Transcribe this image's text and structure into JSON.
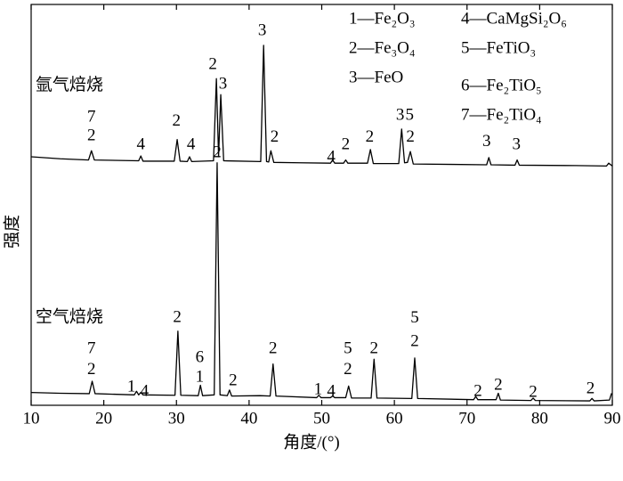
{
  "chart_data": {
    "type": "line",
    "x_label": "角度/(°)",
    "y_label": "强度",
    "xlim": [
      10,
      90
    ],
    "xticks": [
      10,
      20,
      30,
      40,
      50,
      60,
      70,
      80,
      90
    ],
    "ylim": [
      0,
      100
    ],
    "series": [
      {
        "color": "#000000",
        "x": [
          10,
          14,
          17.9,
          18.3,
          18.7,
          24.8,
          25.1,
          25.4,
          29.7,
          30.1,
          30.5,
          31.5,
          31.8,
          32.1,
          35.1,
          35.5,
          35.8,
          36.1,
          36.5,
          41.6,
          42.0,
          42.4,
          42.7,
          43.0,
          43.4,
          47,
          51.2,
          51.5,
          51.8,
          53.0,
          53.3,
          53.6,
          56.3,
          56.7,
          57.1,
          60.6,
          61.0,
          61.4,
          61.8,
          62.2,
          62.6,
          68,
          72.7,
          73.0,
          73.3,
          76.6,
          76.9,
          77.2,
          85,
          89.2,
          89.5,
          90
        ],
        "values": [
          62.0,
          61.5,
          61.2,
          63.5,
          61.2,
          61.0,
          62.2,
          60.9,
          60.9,
          66.3,
          60.9,
          60.8,
          62.0,
          60.8,
          61.0,
          81.5,
          62.0,
          77.5,
          61.0,
          60.8,
          89.8,
          60.8,
          60.7,
          63.5,
          60.6,
          60.5,
          60.4,
          61.2,
          60.4,
          60.4,
          61.2,
          60.4,
          60.4,
          63.8,
          60.3,
          60.3,
          68.9,
          60.5,
          60.6,
          63.3,
          60.2,
          60.1,
          60.0,
          61.8,
          60.0,
          59.9,
          61.2,
          59.9,
          59.8,
          59.7,
          60.4,
          59.7
        ]
      },
      {
        "color": "#000000",
        "x": [
          10,
          14,
          18.0,
          18.4,
          18.8,
          24.2,
          24.5,
          24.8,
          25.1,
          25.4,
          29.8,
          30.2,
          30.6,
          33.0,
          33.3,
          33.6,
          35.2,
          35.6,
          36.0,
          37.0,
          37.3,
          37.6,
          41.5,
          42.9,
          43.3,
          43.7,
          49.3,
          49.6,
          49.9,
          51.2,
          51.5,
          51.8,
          53.3,
          53.7,
          54.1,
          56.8,
          57.2,
          57.6,
          62.4,
          62.8,
          63.2,
          70.9,
          71.2,
          71.5,
          74.0,
          74.3,
          74.6,
          78.8,
          79.1,
          79.4,
          86.9,
          87.2,
          87.5,
          89.6,
          89.9
        ],
        "values": [
          3.2,
          3.0,
          2.9,
          6.0,
          2.9,
          2.6,
          3.5,
          2.6,
          3.2,
          2.6,
          2.5,
          18.5,
          2.5,
          2.4,
          5.0,
          2.4,
          2.6,
          60.5,
          2.6,
          2.4,
          3.8,
          2.3,
          2.4,
          2.3,
          10.3,
          2.3,
          1.9,
          2.5,
          1.9,
          1.9,
          2.3,
          1.9,
          1.9,
          4.8,
          1.8,
          1.8,
          11.5,
          1.8,
          1.7,
          11.8,
          1.7,
          1.4,
          2.2,
          1.4,
          1.4,
          3.0,
          1.3,
          1.2,
          1.8,
          1.2,
          1.1,
          1.7,
          1.1,
          1.3,
          3.0
        ]
      }
    ],
    "series_labels": [
      {
        "text": "氩气焙烧",
        "x": 10.6,
        "y": 79.6
      },
      {
        "text": "空气焙烧",
        "x": 10.6,
        "y": 21.8
      }
    ],
    "annotations": [
      {
        "text": "7",
        "x": 18.3,
        "y": 71.8
      },
      {
        "text": "2",
        "x": 18.3,
        "y": 67.1
      },
      {
        "text": "4",
        "x": 25.1,
        "y": 64.9
      },
      {
        "text": "2",
        "x": 30.0,
        "y": 70.7
      },
      {
        "text": "4",
        "x": 32.0,
        "y": 64.9
      },
      {
        "text": "2",
        "x": 35.0,
        "y": 84.9
      },
      {
        "text": "3",
        "x": 36.4,
        "y": 80.0
      },
      {
        "text": "3",
        "x": 41.8,
        "y": 93.3
      },
      {
        "text": "2",
        "x": 43.5,
        "y": 66.7
      },
      {
        "text": "4",
        "x": 51.3,
        "y": 61.8
      },
      {
        "text": "2",
        "x": 53.3,
        "y": 64.9
      },
      {
        "text": "2",
        "x": 56.6,
        "y": 66.7
      },
      {
        "text": "3",
        "x": 60.8,
        "y": 72.2
      },
      {
        "text": "5",
        "x": 62.1,
        "y": 72.2
      },
      {
        "text": "2",
        "x": 62.2,
        "y": 66.7
      },
      {
        "text": "3",
        "x": 72.7,
        "y": 65.6
      },
      {
        "text": "3",
        "x": 76.8,
        "y": 64.9
      },
      {
        "text": "7",
        "x": 18.3,
        "y": 14.0
      },
      {
        "text": "2",
        "x": 18.3,
        "y": 8.7
      },
      {
        "text": "1",
        "x": 23.8,
        "y": 4.4
      },
      {
        "text": "4",
        "x": 25.6,
        "y": 3.3
      },
      {
        "text": "2",
        "x": 30.1,
        "y": 21.8
      },
      {
        "text": "6",
        "x": 33.2,
        "y": 11.8
      },
      {
        "text": "1",
        "x": 33.2,
        "y": 6.9
      },
      {
        "text": "2",
        "x": 35.6,
        "y": 62.9
      },
      {
        "text": "2",
        "x": 37.8,
        "y": 6.0
      },
      {
        "text": "2",
        "x": 43.3,
        "y": 14.0
      },
      {
        "text": "1",
        "x": 49.5,
        "y": 3.8
      },
      {
        "text": "4",
        "x": 51.3,
        "y": 3.3
      },
      {
        "text": "5",
        "x": 53.6,
        "y": 14.0
      },
      {
        "text": "2",
        "x": 53.6,
        "y": 8.7
      },
      {
        "text": "2",
        "x": 57.2,
        "y": 14.0
      },
      {
        "text": "5",
        "x": 62.8,
        "y": 21.6
      },
      {
        "text": "2",
        "x": 62.8,
        "y": 15.8
      },
      {
        "text": "2",
        "x": 71.5,
        "y": 3.3
      },
      {
        "text": "2",
        "x": 74.3,
        "y": 4.9
      },
      {
        "text": "2",
        "x": 79.1,
        "y": 3.1
      },
      {
        "text": "2",
        "x": 87.0,
        "y": 4.0
      }
    ],
    "legend": [
      [
        "1—Fe₂O₃",
        "2—Fe₃O₄",
        "3—FeO"
      ],
      [
        "4—CaMgSi₂O₆",
        "5—FeTiO₃",
        "6—Fe₂TiO₅",
        "7—Fe₂TiO₄"
      ]
    ]
  }
}
